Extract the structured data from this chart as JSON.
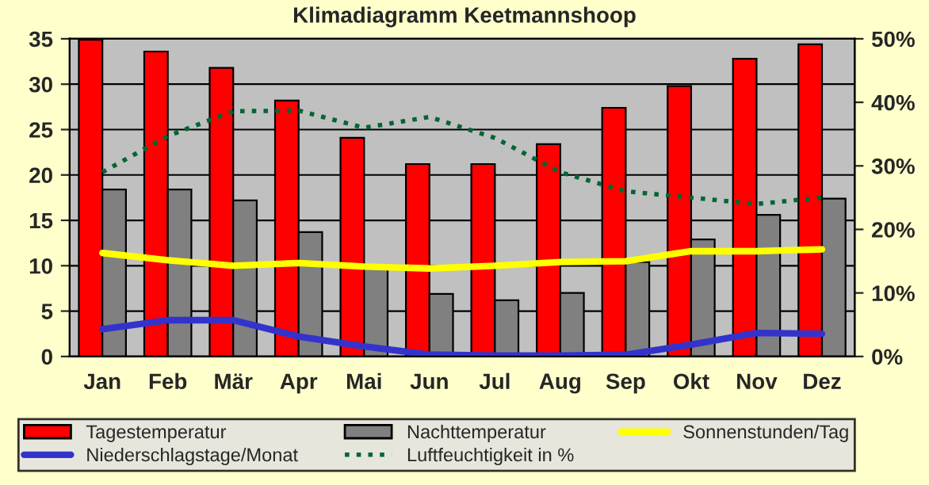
{
  "chart_data": {
    "type": "bar",
    "title": "Klimadiagramm Keetmannshoop",
    "categories": [
      "Jan",
      "Feb",
      "Mär",
      "Apr",
      "Mai",
      "Jun",
      "Jul",
      "Aug",
      "Sep",
      "Okt",
      "Nov",
      "Dez"
    ],
    "series": [
      {
        "name": "Tagestemperatur",
        "color": "#ff0000",
        "values": [
          34.9,
          33.6,
          31.8,
          28.2,
          24.1,
          21.2,
          21.2,
          23.4,
          27.4,
          29.8,
          32.8,
          34.4
        ]
      },
      {
        "name": "Nachttemperatur",
        "color": "#808080",
        "values": [
          18.4,
          18.4,
          17.2,
          13.7,
          9.9,
          6.9,
          6.2,
          7.0,
          10.4,
          12.9,
          15.6,
          17.4
        ]
      },
      {
        "name": "Sonnenstunden/Tag",
        "type": "line",
        "color": "#ffff00",
        "line_style": "solid",
        "values": [
          11.4,
          10.6,
          10.0,
          10.3,
          9.9,
          9.7,
          10.0,
          10.4,
          10.5,
          11.6,
          11.6,
          11.8
        ]
      },
      {
        "name": "Niederschlagstage/Monat",
        "type": "line",
        "color": "#3333cc",
        "line_style": "solid",
        "values": [
          3.0,
          4.0,
          4.0,
          2.2,
          1.1,
          0.2,
          0.1,
          0.1,
          0.2,
          1.3,
          2.6,
          2.5
        ]
      },
      {
        "name": "Luftfeuchtigkeit in %",
        "type": "line",
        "axis": "y2",
        "color": "#006633",
        "line_style": "dotted",
        "values": [
          29,
          34.7,
          38.6,
          38.7,
          36,
          37.7,
          34.4,
          29,
          26,
          25,
          24,
          25
        ]
      }
    ],
    "ylim": [
      0,
      35
    ],
    "yticks": [
      0,
      5,
      10,
      15,
      20,
      25,
      30,
      35
    ],
    "y2lim": [
      0,
      50
    ],
    "y2ticks": [
      {
        "value": 0,
        "label": "0%"
      },
      {
        "value": 10,
        "label": "10%"
      },
      {
        "value": 20,
        "label": "20%"
      },
      {
        "value": 30,
        "label": "30%"
      },
      {
        "value": 40,
        "label": "40%"
      },
      {
        "value": 50,
        "label": "50%"
      }
    ],
    "grid": "y",
    "legend": "bottom"
  }
}
